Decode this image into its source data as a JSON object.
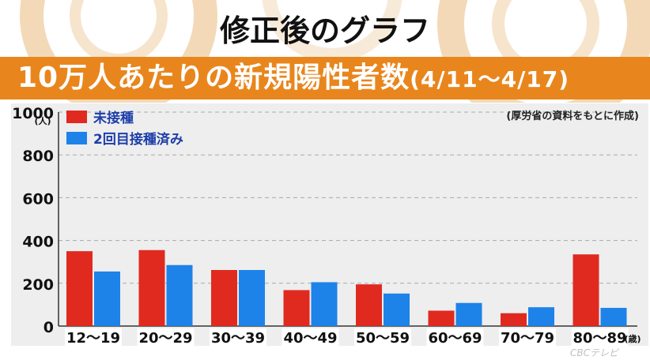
{
  "header": {
    "title": "修正後のグラフ",
    "banner_main": "10万人あたりの新規陽性者数",
    "banner_period": "(4/11～4/17)"
  },
  "note": "(厚労省の資料をもとに作成)",
  "colors": {
    "unvaccinated": "#e02a20",
    "vaccinated": "#1d83e8",
    "banner": "#e8861d",
    "panel": "#eeeeee",
    "legend_text": "#1c3ea8"
  },
  "chart_data": {
    "type": "bar",
    "categories": [
      "12～19",
      "20～29",
      "30～39",
      "40～49",
      "50～59",
      "60～69",
      "70～79",
      "80～89"
    ],
    "series": [
      {
        "name": "未接種",
        "values": [
          350,
          355,
          262,
          168,
          195,
          72,
          60,
          335
        ]
      },
      {
        "name": "2回目接種済み",
        "values": [
          255,
          285,
          262,
          205,
          152,
          108,
          88,
          85
        ]
      }
    ],
    "ylim": [
      0,
      1000
    ],
    "yticks": [
      "0",
      "200",
      "400",
      "600",
      "800",
      "1000"
    ],
    "y_unit": "(人)",
    "x_unit": "(歳)",
    "grid": true,
    "legend": "top-left"
  },
  "watermark": "CBCテレビ"
}
